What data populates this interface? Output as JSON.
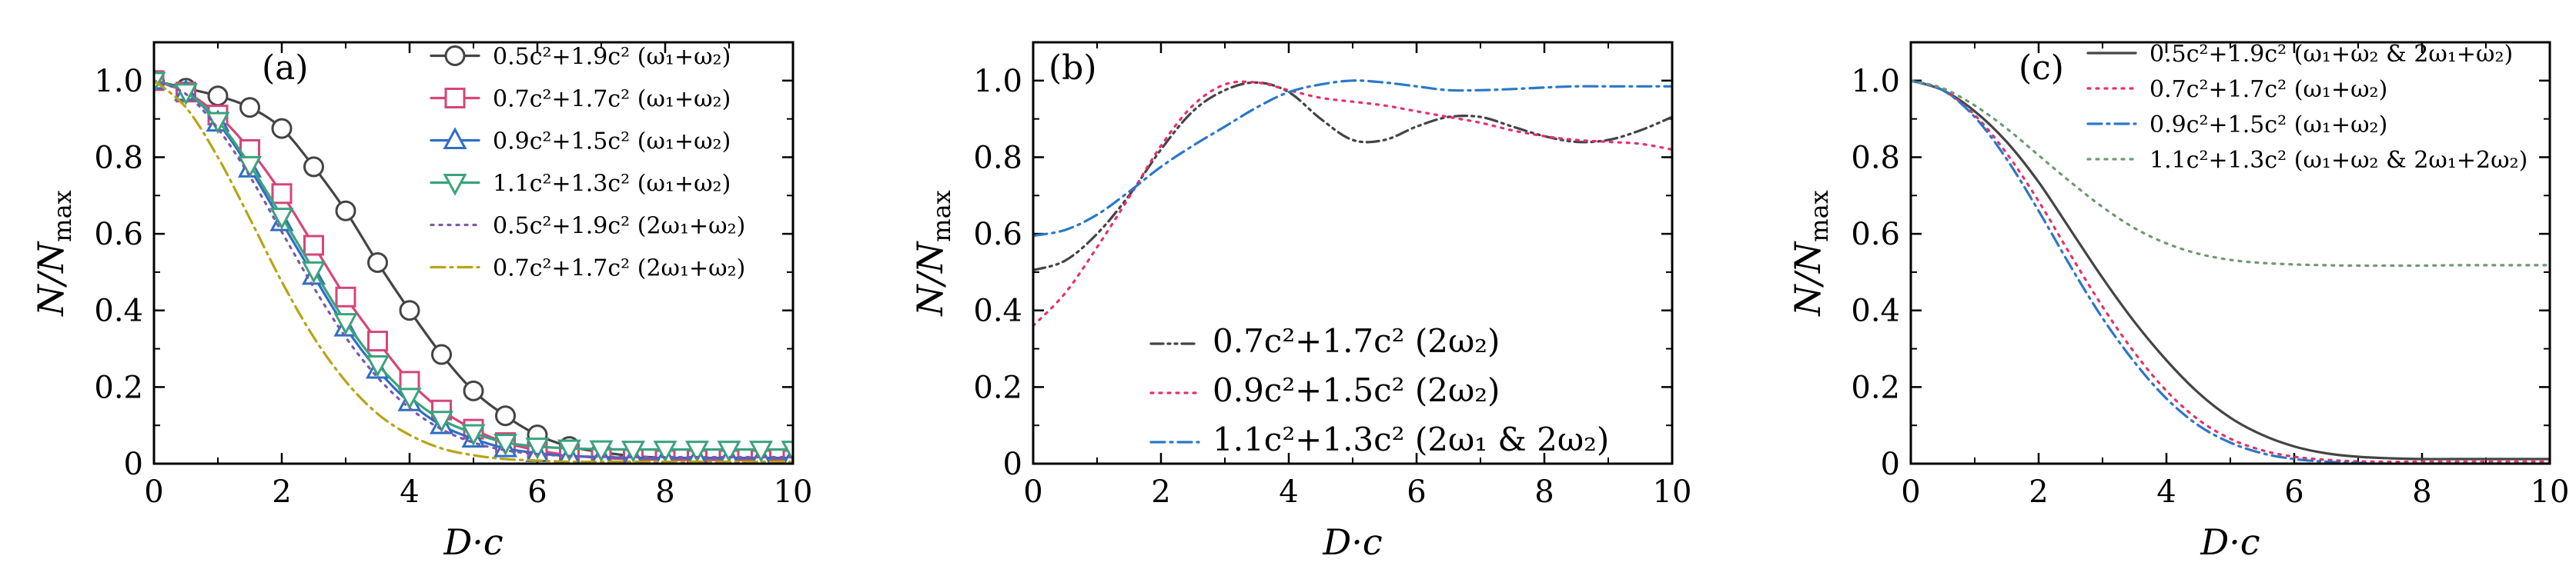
{
  "chart_data": [
    {
      "type": "line",
      "panel": "(a)",
      "xlabel": "D·c",
      "ylabel": "N/N_max",
      "xlim": [
        0,
        10
      ],
      "ylim": [
        0,
        1.1
      ],
      "xticks": [
        "0",
        "2",
        "4",
        "6",
        "8",
        "10"
      ],
      "yticks": [
        "0",
        "0.2",
        "0.4",
        "0.6",
        "0.8",
        "1.0"
      ],
      "legend_position": "top-right",
      "series": [
        {
          "name": "0.5c²+1.9c² (ω₁+ω₂)",
          "color": "#444444",
          "dash": "solid",
          "marker": "circle",
          "x": [
            0,
            0.5,
            1,
            1.5,
            2,
            2.5,
            3,
            3.5,
            4,
            4.5,
            5,
            5.5,
            6,
            6.5,
            7,
            7.5,
            8,
            8.5,
            9,
            9.5,
            10
          ],
          "y": [
            1.0,
            0.98,
            0.96,
            0.93,
            0.875,
            0.775,
            0.66,
            0.525,
            0.4,
            0.285,
            0.19,
            0.125,
            0.075,
            0.045,
            0.03,
            0.02,
            0.015,
            0.012,
            0.01,
            0.01,
            0.01
          ]
        },
        {
          "name": "0.7c²+1.7c² (ω₁+ω₂)",
          "color": "#d6457a",
          "dash": "solid",
          "marker": "square",
          "x": [
            0,
            0.5,
            1,
            1.5,
            2,
            2.5,
            3,
            3.5,
            4,
            4.5,
            5,
            5.5,
            6,
            6.5,
            7,
            7.5,
            8,
            8.5,
            9,
            9.5,
            10
          ],
          "y": [
            1.0,
            0.97,
            0.91,
            0.82,
            0.705,
            0.57,
            0.435,
            0.32,
            0.215,
            0.14,
            0.09,
            0.055,
            0.035,
            0.022,
            0.015,
            0.012,
            0.01,
            0.01,
            0.01,
            0.01,
            0.01
          ]
        },
        {
          "name": "0.9c²+1.5c² (ω₁+ω₂)",
          "color": "#2d6fc4",
          "dash": "solid",
          "marker": "triangle-up",
          "x": [
            0,
            0.5,
            1,
            1.5,
            2,
            2.5,
            3,
            3.5,
            4,
            4.5,
            5,
            5.5,
            6,
            6.5,
            7,
            7.5,
            8,
            8.5,
            9,
            9.5,
            10
          ],
          "y": [
            1.0,
            0.97,
            0.89,
            0.77,
            0.63,
            0.49,
            0.355,
            0.245,
            0.16,
            0.1,
            0.065,
            0.04,
            0.027,
            0.02,
            0.017,
            0.015,
            0.015,
            0.015,
            0.015,
            0.015,
            0.015
          ]
        },
        {
          "name": "1.1c²+1.3c² (ω₁+ω₂)",
          "color": "#3aa37c",
          "dash": "solid",
          "marker": "triangle-down",
          "x": [
            0,
            0.5,
            1,
            1.5,
            2,
            2.5,
            3,
            3.5,
            4,
            4.5,
            5,
            5.5,
            6,
            6.5,
            7,
            7.5,
            8,
            8.5,
            9,
            9.5,
            10
          ],
          "y": [
            1.0,
            0.97,
            0.895,
            0.78,
            0.645,
            0.505,
            0.37,
            0.26,
            0.175,
            0.115,
            0.08,
            0.055,
            0.045,
            0.04,
            0.038,
            0.037,
            0.037,
            0.037,
            0.037,
            0.037,
            0.037
          ]
        },
        {
          "name": "0.5c²+1.9c² (2ω₁+ω₂)",
          "color": "#7a5aa8",
          "dash": "dotted",
          "marker": "none",
          "x": [
            0,
            0.5,
            1,
            1.5,
            2,
            2.5,
            3,
            3.5,
            4,
            4.5,
            5,
            5.5,
            6,
            6.5,
            7,
            7.5,
            8,
            8.5,
            9,
            9.5,
            10
          ],
          "y": [
            1.0,
            0.965,
            0.875,
            0.75,
            0.605,
            0.46,
            0.33,
            0.225,
            0.145,
            0.09,
            0.055,
            0.035,
            0.025,
            0.02,
            0.018,
            0.017,
            0.017,
            0.017,
            0.017,
            0.017,
            0.017
          ]
        },
        {
          "name": "0.7c²+1.7c² (2ω₁+ω₂)",
          "color": "#b8a414",
          "dash": "dashdot",
          "marker": "none",
          "x": [
            0,
            0.5,
            1,
            1.5,
            2,
            2.5,
            3,
            3.5,
            4,
            4.5,
            5,
            5.5,
            6,
            6.5,
            7,
            7.5,
            8,
            8.5,
            9,
            9.5,
            10
          ],
          "y": [
            1.0,
            0.93,
            0.8,
            0.64,
            0.475,
            0.33,
            0.215,
            0.13,
            0.075,
            0.04,
            0.022,
            0.012,
            0.008,
            0.005,
            0.005,
            0.005,
            0.005,
            0.005,
            0.005,
            0.005,
            0.005
          ]
        }
      ]
    },
    {
      "type": "line",
      "panel": "(b)",
      "xlabel": "D·c",
      "ylabel": "N/N_max",
      "xlim": [
        0,
        10
      ],
      "ylim": [
        0,
        1.1
      ],
      "xticks": [
        "0",
        "2",
        "4",
        "6",
        "8",
        "10"
      ],
      "yticks": [
        "0",
        "0.2",
        "0.4",
        "0.6",
        "0.8",
        "1.0"
      ],
      "legend_position": "bottom-right",
      "series": [
        {
          "name": "0.7c²+1.7c² (2ω₂)",
          "color": "#444444",
          "dash": "dashdotdot",
          "marker": "none",
          "x": [
            0,
            0.5,
            1,
            1.5,
            2,
            2.5,
            3,
            3.5,
            4,
            4.5,
            5,
            5.5,
            6,
            6.5,
            7,
            7.5,
            8,
            8.5,
            9,
            9.5,
            10
          ],
          "y": [
            0.505,
            0.53,
            0.6,
            0.7,
            0.82,
            0.92,
            0.975,
            0.995,
            0.97,
            0.9,
            0.845,
            0.845,
            0.88,
            0.905,
            0.905,
            0.88,
            0.855,
            0.84,
            0.845,
            0.87,
            0.905
          ]
        },
        {
          "name": "0.9c²+1.5c² (2ω₂)",
          "color": "#e8306a",
          "dash": "dotted",
          "marker": "none",
          "x": [
            0,
            0.5,
            1,
            1.5,
            2,
            2.5,
            3,
            3.5,
            4,
            4.5,
            5,
            5.5,
            6,
            6.5,
            7,
            7.5,
            8,
            8.5,
            9,
            9.5,
            10
          ],
          "y": [
            0.36,
            0.445,
            0.565,
            0.695,
            0.83,
            0.935,
            0.99,
            0.995,
            0.975,
            0.955,
            0.945,
            0.935,
            0.92,
            0.905,
            0.89,
            0.87,
            0.855,
            0.845,
            0.84,
            0.835,
            0.82
          ]
        },
        {
          "name": "1.1c²+1.3c² (2ω₁ & 2ω₂)",
          "color": "#2a78c8",
          "dash": "dashdot",
          "marker": "none",
          "x": [
            0,
            0.5,
            1,
            1.5,
            2,
            2.5,
            3,
            3.5,
            4,
            4.5,
            5,
            5.5,
            6,
            6.5,
            7,
            7.5,
            8,
            8.5,
            9,
            9.5,
            10
          ],
          "y": [
            0.595,
            0.61,
            0.65,
            0.71,
            0.775,
            0.83,
            0.88,
            0.93,
            0.97,
            0.99,
            1.0,
            0.995,
            0.985,
            0.975,
            0.975,
            0.978,
            0.982,
            0.985,
            0.985,
            0.985,
            0.985
          ]
        }
      ]
    },
    {
      "type": "line",
      "panel": "(c)",
      "xlabel": "D·c",
      "ylabel": "N/N_max",
      "xlim": [
        0,
        10
      ],
      "ylim": [
        0,
        1.1
      ],
      "xticks": [
        "0",
        "2",
        "4",
        "6",
        "8",
        "10"
      ],
      "yticks": [
        "0",
        "0.2",
        "0.4",
        "0.6",
        "0.8",
        "1.0"
      ],
      "legend_position": "top-right",
      "series": [
        {
          "name": "0.5c²+1.9c² (ω₁+ω₂ & 2ω₁+ω₂)",
          "color": "#444444",
          "dash": "solid",
          "marker": "none",
          "x": [
            0,
            0.5,
            1,
            1.5,
            2,
            2.5,
            3,
            3.5,
            4,
            4.5,
            5,
            5.5,
            6,
            6.5,
            7,
            7.5,
            8,
            8.5,
            9,
            9.5,
            10
          ],
          "y": [
            1.0,
            0.975,
            0.92,
            0.84,
            0.735,
            0.61,
            0.485,
            0.37,
            0.27,
            0.185,
            0.12,
            0.075,
            0.045,
            0.027,
            0.018,
            0.014,
            0.012,
            0.012,
            0.012,
            0.012,
            0.012
          ]
        },
        {
          "name": "0.7c²+1.7c² (ω₁+ω₂)",
          "color": "#e8306a",
          "dash": "dotted",
          "marker": "none",
          "x": [
            0,
            0.5,
            1,
            1.5,
            2,
            2.5,
            3,
            3.5,
            4,
            4.5,
            5,
            5.5,
            6,
            6.5,
            7,
            7.5,
            8,
            8.5,
            9,
            9.5,
            10
          ],
          "y": [
            1.0,
            0.975,
            0.91,
            0.81,
            0.685,
            0.545,
            0.41,
            0.29,
            0.19,
            0.115,
            0.065,
            0.035,
            0.018,
            0.01,
            0.006,
            0.005,
            0.005,
            0.005,
            0.005,
            0.005,
            0.005
          ]
        },
        {
          "name": "0.9c²+1.5c² (ω₁+ω₂)",
          "color": "#2a78c8",
          "dash": "dashdot",
          "marker": "none",
          "x": [
            0,
            0.5,
            1,
            1.5,
            2,
            2.5,
            3,
            3.5,
            4,
            4.5,
            5,
            5.5,
            6,
            6.5,
            7,
            7.5,
            8,
            8.5,
            9,
            9.5,
            10
          ],
          "y": [
            1.0,
            0.975,
            0.905,
            0.795,
            0.66,
            0.515,
            0.38,
            0.265,
            0.17,
            0.1,
            0.055,
            0.027,
            0.012,
            0.005,
            0.002,
            0.0,
            0.0,
            0.0,
            0.0,
            0.0,
            0.0
          ]
        },
        {
          "name": "1.1c²+1.3c² (ω₁+ω₂ & 2ω₁+2ω₂)",
          "color": "#6e9a72",
          "dash": "dotted",
          "marker": "none",
          "x": [
            0,
            0.5,
            1,
            1.5,
            2,
            2.5,
            3,
            3.5,
            4,
            4.5,
            5,
            5.5,
            6,
            6.5,
            7,
            7.5,
            8,
            8.5,
            9,
            9.5,
            10
          ],
          "y": [
            1.0,
            0.98,
            0.935,
            0.875,
            0.805,
            0.735,
            0.67,
            0.615,
            0.575,
            0.548,
            0.532,
            0.524,
            0.52,
            0.518,
            0.517,
            0.517,
            0.517,
            0.518,
            0.518,
            0.518,
            0.518
          ]
        }
      ]
    }
  ]
}
